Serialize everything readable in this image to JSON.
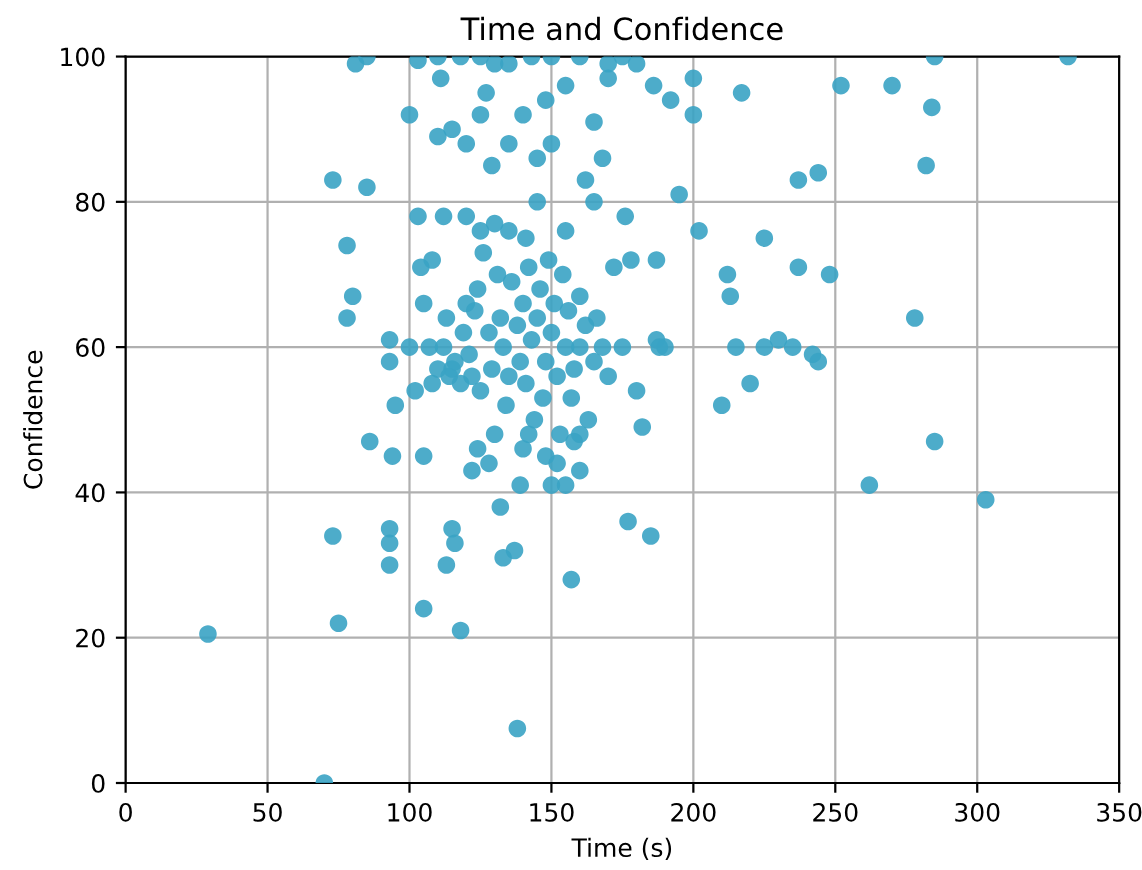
{
  "chart_data": {
    "type": "scatter",
    "title": "Time and Confidence",
    "xlabel": "Time (s)",
    "ylabel": "Confidence",
    "xlim": [
      0,
      350
    ],
    "ylim": [
      0,
      100
    ],
    "xticks": [
      0,
      50,
      100,
      150,
      200,
      250,
      300,
      350
    ],
    "yticks": [
      0,
      20,
      40,
      60,
      80,
      100
    ],
    "grid": true,
    "marker": "circle",
    "series": [
      {
        "color": "#3aa3c4",
        "x": [
          29,
          70,
          73,
          75,
          73,
          78,
          80,
          78,
          85,
          86,
          93,
          93,
          93,
          93,
          93,
          95,
          94,
          100,
          103,
          81,
          85,
          105,
          105,
          107,
          108,
          104,
          103,
          110,
          111,
          113,
          113,
          115,
          115,
          116,
          118,
          118,
          120,
          122,
          122,
          124,
          127,
          129,
          130,
          132,
          133,
          135,
          137,
          138,
          139,
          140,
          141,
          143,
          145,
          148,
          150,
          152,
          155,
          157,
          158,
          160,
          160,
          162,
          165,
          168,
          170,
          172,
          175,
          176,
          177,
          180,
          182,
          185,
          186,
          187,
          187,
          190,
          192,
          195,
          200,
          202,
          210,
          212,
          213,
          215,
          217,
          220,
          225,
          225,
          230,
          235,
          237,
          237,
          242,
          244,
          244,
          248,
          252,
          262,
          270,
          278,
          282,
          284,
          285,
          303,
          332,
          285,
          110,
          112,
          114,
          116,
          118,
          119,
          120,
          121,
          123,
          124,
          125,
          126,
          128,
          129,
          130,
          131,
          132,
          133,
          134,
          135,
          136,
          138,
          139,
          140,
          141,
          142,
          143,
          144,
          145,
          146,
          147,
          148,
          149,
          150,
          151,
          152,
          153,
          154,
          155,
          156,
          157,
          158,
          160,
          162,
          163,
          165,
          166,
          168,
          170,
          120,
          125,
          135,
          145,
          155,
          165,
          105,
          108,
          112,
          100,
          102,
          128,
          130,
          142,
          148,
          155,
          160,
          150,
          140,
          125,
          115,
          160,
          150,
          170,
          175,
          180,
          135,
          125,
          110,
          200,
          188,
          178
        ],
        "values": [
          20.5,
          0,
          34,
          22,
          83,
          64,
          67,
          74,
          82,
          47,
          61,
          58,
          35,
          33,
          30,
          52,
          45,
          92,
          99.5,
          99,
          100,
          24,
          45,
          60,
          55,
          71,
          78,
          89,
          97,
          30,
          64,
          57,
          35,
          33,
          21,
          100,
          88,
          56,
          43,
          46,
          95,
          85,
          99,
          38,
          31,
          88,
          32,
          7.5,
          41,
          46,
          75,
          100,
          86,
          94,
          41,
          44,
          96,
          28,
          47,
          43,
          60,
          83,
          91,
          86,
          97,
          71,
          60,
          78,
          36,
          54,
          49,
          34,
          96,
          72,
          61,
          60,
          94,
          81,
          97,
          76,
          52,
          70,
          67,
          60,
          95,
          55,
          75,
          60,
          61,
          60,
          71,
          83,
          59,
          58,
          84,
          70,
          96,
          41,
          96,
          64,
          85,
          93,
          47,
          39,
          100,
          100,
          57,
          60,
          56,
          58,
          55,
          62,
          66,
          59,
          65,
          68,
          54,
          73,
          62,
          57,
          77,
          70,
          64,
          60,
          52,
          56,
          69,
          63,
          58,
          66,
          55,
          71,
          61,
          50,
          64,
          68,
          53,
          58,
          72,
          62,
          66,
          56,
          48,
          70,
          60,
          65,
          53,
          57,
          67,
          63,
          50,
          58,
          64,
          60,
          56,
          78,
          76,
          76,
          80,
          76,
          80,
          66,
          72,
          78,
          60,
          54,
          44,
          48,
          48,
          45,
          41,
          48,
          88,
          92,
          92,
          90,
          100,
          100,
          99,
          100,
          99,
          99,
          100,
          100,
          92,
          60,
          72
        ]
      }
    ]
  }
}
